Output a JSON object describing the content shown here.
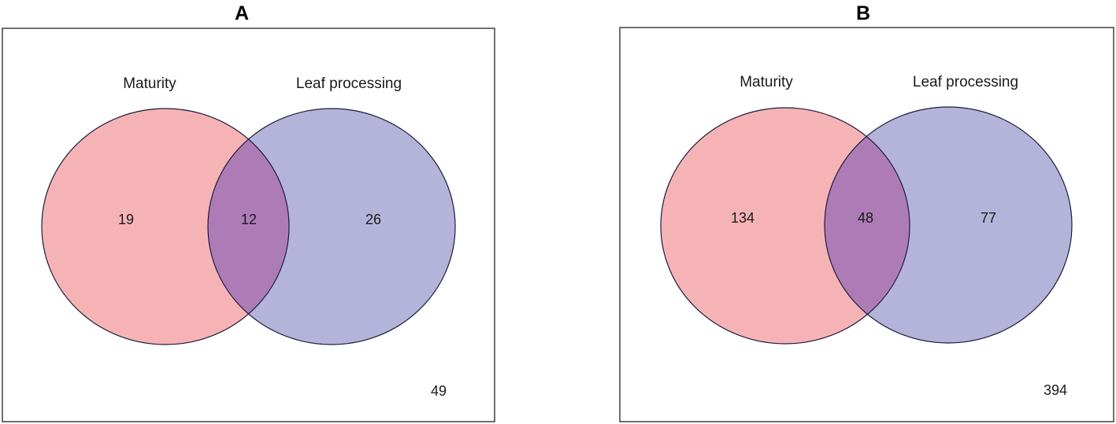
{
  "colors": {
    "set_a_fill": "#f6b3b6",
    "set_b_fill": "#b4b3d9",
    "overlap_fill": "#ad7cb7",
    "outline": "#1c1c3a"
  },
  "panels": [
    {
      "letter": "A",
      "set_a_label": "Maturity",
      "set_b_label": "Leaf processing",
      "only_a": "19",
      "both": "12",
      "only_b": "26",
      "neither": "49"
    },
    {
      "letter": "B",
      "set_a_label": "Maturity",
      "set_b_label": "Leaf processing",
      "only_a": "134",
      "both": "48",
      "only_b": "77",
      "neither": "394"
    }
  ]
}
